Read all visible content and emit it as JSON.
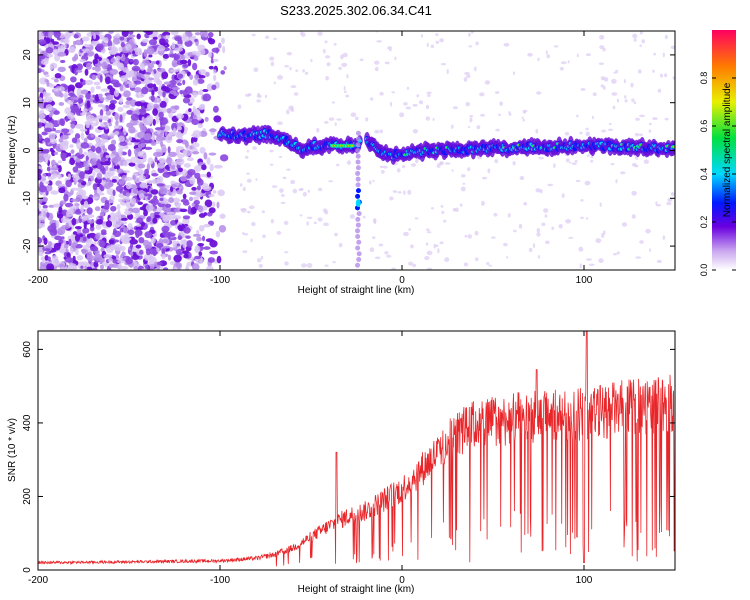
{
  "title": "S233.2025.302.06.34.C41",
  "chart_data": [
    {
      "type": "heatmap",
      "xlabel": "Height of straight line (km)",
      "ylabel": "Frequency (Hz)",
      "xlim": [
        -200,
        150
      ],
      "ylim": [
        -25,
        25
      ],
      "xticks": [
        -200,
        -100,
        0,
        100
      ],
      "yticks": [
        -20,
        -10,
        0,
        10,
        20
      ],
      "colorbar": {
        "label": "Normalized spectral amplitude",
        "range": [
          0,
          1
        ],
        "ticks": [
          0.0,
          0.2,
          0.4,
          0.6,
          0.8
        ]
      },
      "trace": {
        "x": [
          -100,
          -85,
          -75,
          -65,
          -60,
          -55,
          -50,
          -45,
          -40,
          -35,
          -30,
          -25,
          -22,
          -20,
          -15,
          -10,
          -5,
          0,
          20,
          50,
          100,
          150
        ],
        "freq": [
          3.5,
          3.0,
          3.5,
          2.5,
          1.5,
          0,
          1.0,
          1.0,
          1.0,
          1.0,
          1.0,
          1.0,
          2.5,
          2.5,
          0.5,
          -0.5,
          -1.0,
          -0.5,
          0,
          0.5,
          1.0,
          0.5
        ]
      },
      "spike_event": {
        "x": -24,
        "freq_range": [
          -13,
          -8
        ]
      }
    },
    {
      "type": "line",
      "xlabel": "Height of straight line (km)",
      "ylabel": "SNR (10 * v/v)",
      "xlim": [
        -200,
        150
      ],
      "ylim": [
        0,
        650
      ],
      "xticks": [
        -200,
        -100,
        0,
        100
      ],
      "yticks": [
        0,
        200,
        400,
        600
      ],
      "color": "#e8262a",
      "envelope": {
        "x": [
          -200,
          -150,
          -100,
          -80,
          -70,
          -60,
          -50,
          -40,
          -30,
          -20,
          -10,
          0,
          10,
          20,
          30,
          40,
          50,
          60,
          70,
          80,
          90,
          100,
          110,
          120,
          130,
          140,
          150
        ],
        "y": [
          20,
          22,
          25,
          32,
          42,
          60,
          90,
          120,
          145,
          160,
          190,
          220,
          270,
          320,
          370,
          395,
          405,
          410,
          415,
          420,
          420,
          425,
          430,
          440,
          445,
          448,
          455
        ]
      }
    }
  ]
}
